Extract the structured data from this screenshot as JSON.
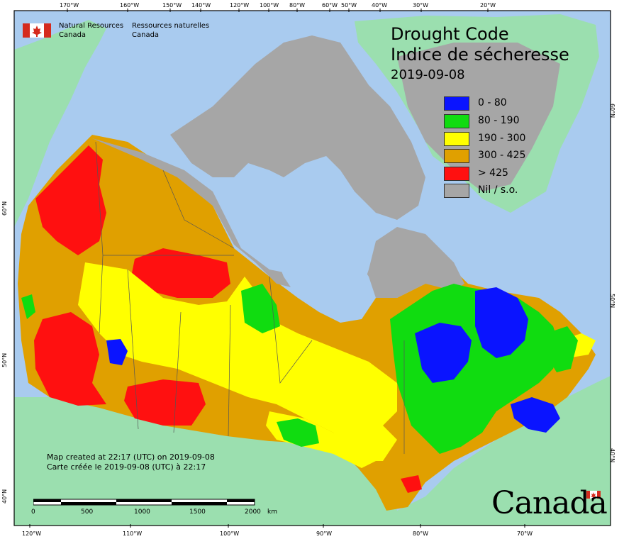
{
  "agency": {
    "english": [
      "Natural Resources",
      "Canada"
    ],
    "french": [
      "Ressources naturelles",
      "Canada"
    ]
  },
  "title": {
    "english": "Drought Code",
    "french": "Indice de sécheresse",
    "date": "2019-09-08"
  },
  "legend": [
    {
      "label": "0 - 80",
      "color": "#0a14ff"
    },
    {
      "label": "80 - 190",
      "color": "#10dc10"
    },
    {
      "label": "190 - 300",
      "color": "#ffff00"
    },
    {
      "label": "300 - 425",
      "color": "#e0a000"
    },
    {
      "label": "> 425",
      "color": "#ff1010"
    },
    {
      "label": "Nil / s.o.",
      "color": "#a6a6a6"
    }
  ],
  "colors": {
    "ocean": "#a9cbef",
    "land_outside": "#9bdfaf",
    "nil": "#a6a6a6",
    "border": "#555555"
  },
  "graticule": {
    "top": [
      "170°W",
      "160°W",
      "150°W",
      "140°W",
      "120°W",
      "100°W",
      "80°W",
      "60°W",
      "50°W",
      "40°W",
      "30°W",
      "20°W"
    ],
    "bottom": [
      "120°W",
      "110°W",
      "100°W",
      "90°W",
      "80°W",
      "70°W"
    ],
    "left": [
      "60°N",
      "50°N",
      "40°N"
    ],
    "right": [
      "60°N",
      "50°N",
      "40°N"
    ]
  },
  "scale": {
    "labels": [
      "0",
      "500",
      "1000",
      "1500",
      "2000"
    ],
    "unit": "km"
  },
  "credit": {
    "english": "Map created at 22:17 (UTC) on 2019-09-08",
    "french": "Carte créée le 2019-09-08 (UTC) à 22:17"
  },
  "wordmark": "Canada"
}
